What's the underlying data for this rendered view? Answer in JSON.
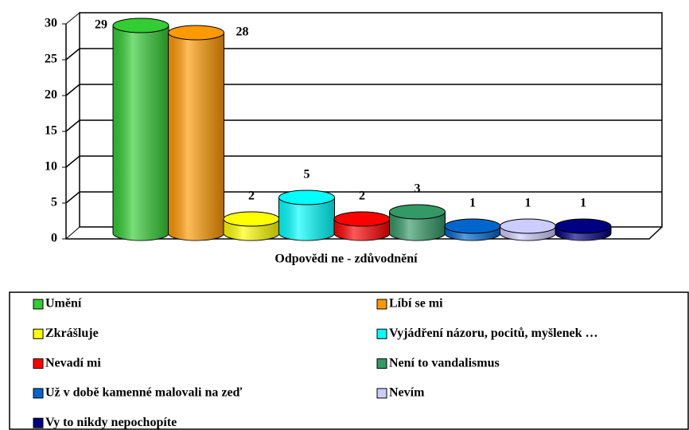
{
  "chart_data": {
    "type": "bar",
    "x_label": "Odpovědi ne - zdůvodnění",
    "ylim": [
      0,
      30
    ],
    "yticks": [
      0,
      5,
      10,
      15,
      20,
      25,
      30
    ],
    "grid": true,
    "series": [
      {
        "name": "Umění",
        "color": "#33cc33",
        "values": [
          29
        ]
      },
      {
        "name": "Líbí se mi",
        "color": "#ff9900",
        "values": [
          28
        ]
      },
      {
        "name": "Zkrášluje",
        "color": "#ffff00",
        "values": [
          2
        ]
      },
      {
        "name": "Vyjádření názoru, pocitů, myšlenek …",
        "color": "#00ffff",
        "values": [
          5
        ]
      },
      {
        "name": "Nevadí mi",
        "color": "#ff0000",
        "values": [
          2
        ]
      },
      {
        "name": "Není to vandalismus",
        "color": "#339966",
        "values": [
          3
        ]
      },
      {
        "name": "Už v době kamenné malovali na zeď",
        "color": "#0066cc",
        "values": [
          1
        ]
      },
      {
        "name": "Nevím",
        "color": "#ccccff",
        "values": [
          1
        ]
      },
      {
        "name": "Vy to nikdy nepochopíte",
        "color": "#000080",
        "values": [
          1
        ]
      }
    ]
  }
}
